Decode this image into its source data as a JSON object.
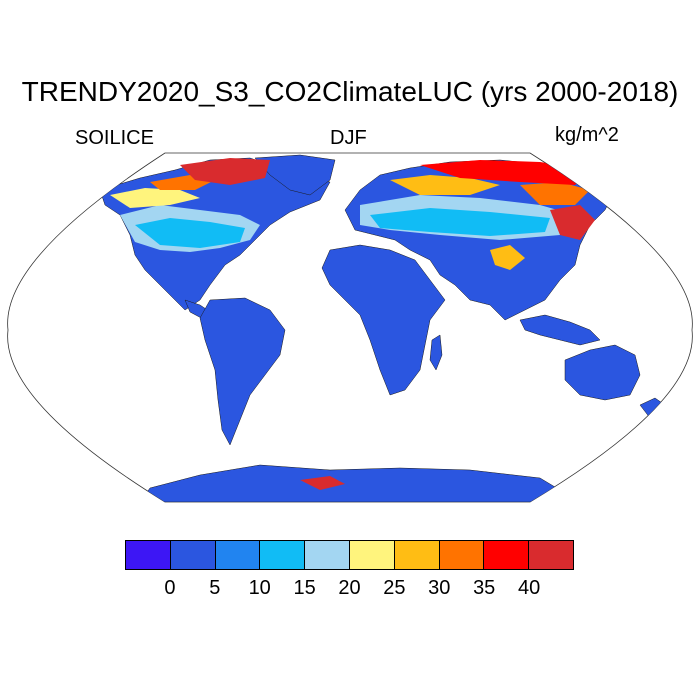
{
  "figure": {
    "title": "TRENDY2020_S3_CO2ClimateLUC (yrs 2000-2018)",
    "left_label": "SOILICE",
    "center_label": "DJF",
    "units_label": "kg/m^2"
  },
  "colorbar": {
    "colors": [
      "#3d16f5",
      "#2b56e0",
      "#2184f0",
      "#11bcf5",
      "#a3d6f2",
      "#fff47d",
      "#ffbd14",
      "#ff7300",
      "#ff0000",
      "#d92b2e"
    ],
    "tick_labels": [
      "0",
      "5",
      "10",
      "15",
      "20",
      "25",
      "30",
      "35",
      "40"
    ]
  },
  "map": {
    "projection": "Robinson",
    "ocean_color": "#ffffff",
    "land_default_color": "#2b56e0"
  }
}
